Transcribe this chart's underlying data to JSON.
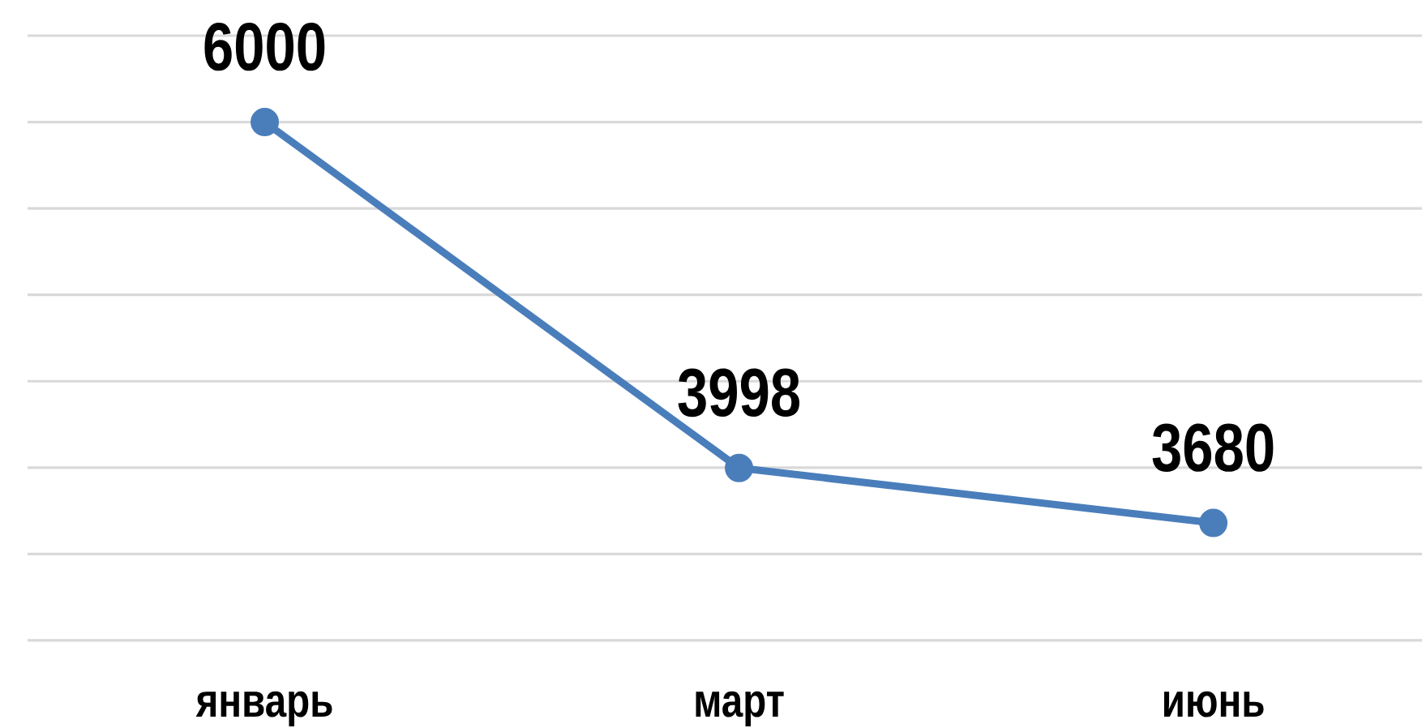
{
  "chart_data": {
    "type": "line",
    "categories": [
      "январь",
      "март",
      "июнь"
    ],
    "values": [
      6000,
      3998,
      3680
    ],
    "color": "#4a7ebb",
    "ylim": [
      3000,
      6500
    ],
    "yticks": [
      {
        "value": 3000,
        "label": null
      },
      {
        "value": 3500,
        "label": null
      },
      {
        "value": 4000,
        "label": null
      },
      {
        "value": 4500,
        "label": null
      },
      {
        "value": 5000,
        "label": null
      },
      {
        "value": 5500,
        "label": null
      },
      {
        "value": 6000,
        "label": null
      },
      {
        "value": 6500,
        "label": null
      }
    ],
    "grid": "y",
    "tick_labels": "x",
    "marker": "circle",
    "data_labels": true
  }
}
